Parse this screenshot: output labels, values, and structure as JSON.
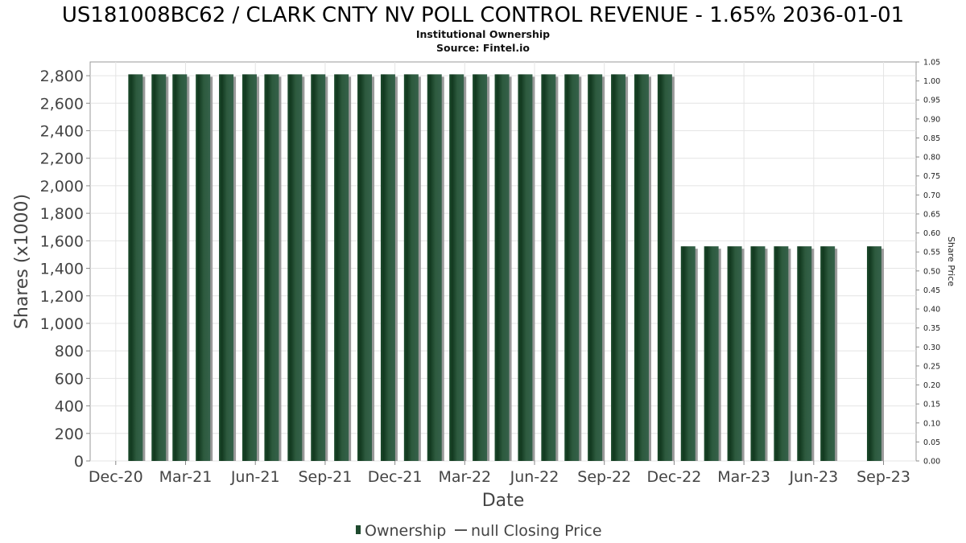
{
  "chart_data": {
    "type": "bar",
    "title": "US181008BC62 / CLARK CNTY NV POLL CONTROL REVENUE - 1.65% 2036-01-01",
    "subtitle": "Institutional Ownership",
    "source": "Source: Fintel.io",
    "xlabel": "Date",
    "ylabel": "Shares (x1000)",
    "y2label": "Share Price",
    "ylim": [
      0,
      2900
    ],
    "y_ticks": [
      "0",
      "200",
      "400",
      "600",
      "800",
      "1,000",
      "1,200",
      "1,400",
      "1,600",
      "1,800",
      "2,000",
      "2,200",
      "2,400",
      "2,600",
      "2,800"
    ],
    "y_tick_values": [
      0,
      200,
      400,
      600,
      800,
      1000,
      1200,
      1400,
      1600,
      1800,
      2000,
      2200,
      2400,
      2600,
      2800
    ],
    "y2lim": [
      0,
      1.05
    ],
    "y2_ticks": [
      "0.00",
      "0.05",
      "0.10",
      "0.15",
      "0.20",
      "0.25",
      "0.30",
      "0.35",
      "0.40",
      "0.45",
      "0.50",
      "0.55",
      "0.60",
      "0.65",
      "0.70",
      "0.75",
      "0.80",
      "0.85",
      "0.90",
      "0.95",
      "1.00",
      "1.05"
    ],
    "y2_tick_values": [
      0,
      0.05,
      0.1,
      0.15,
      0.2,
      0.25,
      0.3,
      0.35,
      0.4,
      0.45,
      0.5,
      0.55,
      0.6,
      0.65,
      0.7,
      0.75,
      0.8,
      0.85,
      0.9,
      0.95,
      1.0,
      1.05
    ],
    "x_ticks": [
      "Dec-20",
      "Mar-21",
      "Jun-21",
      "Sep-21",
      "Dec-21",
      "Mar-22",
      "Jun-22",
      "Sep-22",
      "Dec-22",
      "Mar-23",
      "Jun-23",
      "Sep-23"
    ],
    "x_tick_months": [
      0,
      3,
      6,
      9,
      12,
      15,
      18,
      21,
      24,
      27,
      30,
      33
    ],
    "x_range_months": [
      -1.1,
      34.4
    ],
    "bar_months": [
      0.85,
      1.85,
      2.75,
      3.75,
      4.75,
      5.75,
      6.7,
      7.7,
      8.7,
      9.7,
      10.7,
      11.7,
      12.7,
      13.7,
      14.65,
      15.65,
      16.6,
      17.6,
      18.6,
      19.6,
      20.6,
      21.6,
      22.6,
      23.6,
      24.6,
      25.6,
      26.6,
      27.6,
      28.6,
      29.6,
      30.6,
      32.6
    ],
    "series": [
      {
        "name": "Ownership",
        "color": "#1f4a2e",
        "values": [
          2810,
          2810,
          2810,
          2810,
          2810,
          2810,
          2810,
          2810,
          2810,
          2810,
          2810,
          2810,
          2810,
          2810,
          2810,
          2810,
          2810,
          2810,
          2810,
          2810,
          2810,
          2810,
          2810,
          2810,
          1560,
          1560,
          1560,
          1560,
          1560,
          1560,
          1560,
          1560
        ]
      },
      {
        "name": "null Closing Price",
        "color": "#666666",
        "values": []
      }
    ],
    "grid": true,
    "legend_position": "bottom-center",
    "legend": [
      {
        "label": "Ownership",
        "symbol": "bar-swatch"
      },
      {
        "label": "null Closing Price",
        "symbol": "line-swatch"
      }
    ]
  }
}
